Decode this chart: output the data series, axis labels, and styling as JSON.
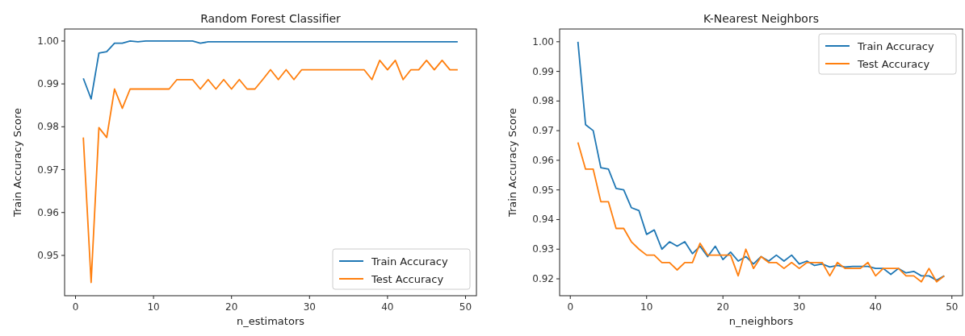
{
  "chart_data": [
    {
      "type": "line",
      "title": "Random Forest Classifier",
      "xlabel": "n_estimators",
      "ylabel": "Train Accuracy Score",
      "x": [
        1,
        2,
        3,
        4,
        5,
        6,
        7,
        8,
        9,
        10,
        11,
        12,
        13,
        14,
        15,
        16,
        17,
        18,
        19,
        20,
        21,
        22,
        23,
        24,
        25,
        26,
        27,
        28,
        29,
        30,
        31,
        32,
        33,
        34,
        35,
        36,
        37,
        38,
        39,
        40,
        41,
        42,
        43,
        44,
        45,
        46,
        47,
        48,
        49
      ],
      "xlim": [
        -1.4,
        51.4
      ],
      "xticks": [
        0,
        10,
        20,
        30,
        40,
        50
      ],
      "ylim": [
        0.9406,
        1.0028
      ],
      "yticks": [
        {
          "value": 0.95,
          "label": "0.95"
        },
        {
          "value": 0.96,
          "label": "0.96"
        },
        {
          "value": 0.97,
          "label": "0.97"
        },
        {
          "value": 0.98,
          "label": "0.98"
        },
        {
          "value": 0.99,
          "label": "0.99"
        },
        {
          "value": 1.0,
          "label": "1.00"
        }
      ],
      "legend": "bottom right",
      "grid": false,
      "series": [
        {
          "name": "Train Accuracy",
          "color": "#1f77b4",
          "values": [
            0.9913,
            0.9865,
            0.9972,
            0.9975,
            0.9995,
            0.9995,
            1.0,
            0.9998,
            1.0,
            1.0,
            1.0,
            1.0,
            1.0,
            1.0,
            1.0,
            0.9995,
            0.9998,
            0.9998,
            0.9998,
            0.9998,
            0.9998,
            0.9998,
            0.9998,
            0.9998,
            0.9998,
            0.9998,
            0.9998,
            0.9998,
            0.9998,
            0.9998,
            0.9998,
            0.9998,
            0.9998,
            0.9998,
            0.9998,
            0.9998,
            0.9998,
            0.9998,
            0.9998,
            0.9998,
            0.9998,
            0.9998,
            0.9998,
            0.9998,
            0.9998,
            0.9998,
            0.9998,
            0.9998,
            0.9998
          ]
        },
        {
          "name": "Test Accuracy",
          "color": "#ff7f0e",
          "values": [
            0.9775,
            0.9437,
            0.9798,
            0.9775,
            0.9888,
            0.9843,
            0.9888,
            0.9888,
            0.9888,
            0.9888,
            0.9888,
            0.9888,
            0.991,
            0.991,
            0.991,
            0.9888,
            0.991,
            0.9888,
            0.991,
            0.9888,
            0.991,
            0.9888,
            0.9888,
            0.991,
            0.9933,
            0.991,
            0.9933,
            0.991,
            0.9933,
            0.9933,
            0.9933,
            0.9933,
            0.9933,
            0.9933,
            0.9933,
            0.9933,
            0.9933,
            0.991,
            0.9955,
            0.9933,
            0.9955,
            0.991,
            0.9933,
            0.9933,
            0.9955,
            0.9933,
            0.9955,
            0.9933,
            0.9933
          ]
        }
      ]
    },
    {
      "type": "line",
      "title": "K-Nearest Neighbors",
      "xlabel": "n_neighbors",
      "ylabel": "Train Accuracy Score",
      "x": [
        1,
        2,
        3,
        4,
        5,
        6,
        7,
        8,
        9,
        10,
        11,
        12,
        13,
        14,
        15,
        16,
        17,
        18,
        19,
        20,
        21,
        22,
        23,
        24,
        25,
        26,
        27,
        28,
        29,
        30,
        31,
        32,
        33,
        34,
        35,
        36,
        37,
        38,
        39,
        40,
        41,
        42,
        43,
        44,
        45,
        46,
        47,
        48,
        49
      ],
      "xlim": [
        -1.4,
        51.4
      ],
      "xticks": [
        0,
        10,
        20,
        30,
        40,
        50
      ],
      "ylim": [
        0.9143,
        1.0043
      ],
      "yticks": [
        {
          "value": 0.92,
          "label": "0.92"
        },
        {
          "value": 0.93,
          "label": "0.93"
        },
        {
          "value": 0.94,
          "label": "0.94"
        },
        {
          "value": 0.95,
          "label": "0.95"
        },
        {
          "value": 0.96,
          "label": "0.96"
        },
        {
          "value": 0.97,
          "label": "0.97"
        },
        {
          "value": 0.98,
          "label": "0.98"
        },
        {
          "value": 0.99,
          "label": "0.99"
        },
        {
          "value": 1.0,
          "label": "1.00"
        }
      ],
      "legend": "top right",
      "grid": false,
      "series": [
        {
          "name": "Train Accuracy",
          "color": "#1f77b4",
          "values": [
            1.0,
            0.972,
            0.97,
            0.9575,
            0.957,
            0.9505,
            0.95,
            0.944,
            0.943,
            0.935,
            0.9365,
            0.93,
            0.9325,
            0.931,
            0.9325,
            0.9285,
            0.931,
            0.9275,
            0.931,
            0.9265,
            0.929,
            0.926,
            0.9275,
            0.925,
            0.9275,
            0.926,
            0.928,
            0.926,
            0.928,
            0.925,
            0.926,
            0.9245,
            0.925,
            0.924,
            0.9245,
            0.924,
            0.9242,
            0.9242,
            0.9242,
            0.9235,
            0.9235,
            0.9215,
            0.9235,
            0.922,
            0.9225,
            0.921,
            0.921,
            0.9195,
            0.921
          ]
        },
        {
          "name": "Test Accuracy",
          "color": "#ff7f0e",
          "values": [
            0.966,
            0.957,
            0.957,
            0.946,
            0.946,
            0.937,
            0.937,
            0.9325,
            0.93,
            0.928,
            0.928,
            0.9255,
            0.9255,
            0.923,
            0.9255,
            0.9255,
            0.932,
            0.928,
            0.928,
            0.928,
            0.928,
            0.921,
            0.93,
            0.9235,
            0.9275,
            0.9255,
            0.9255,
            0.9235,
            0.9255,
            0.9235,
            0.9255,
            0.9255,
            0.9255,
            0.921,
            0.9255,
            0.9235,
            0.9235,
            0.9235,
            0.9255,
            0.921,
            0.9235,
            0.9235,
            0.9235,
            0.921,
            0.921,
            0.919,
            0.9235,
            0.919,
            0.921
          ]
        }
      ]
    }
  ]
}
